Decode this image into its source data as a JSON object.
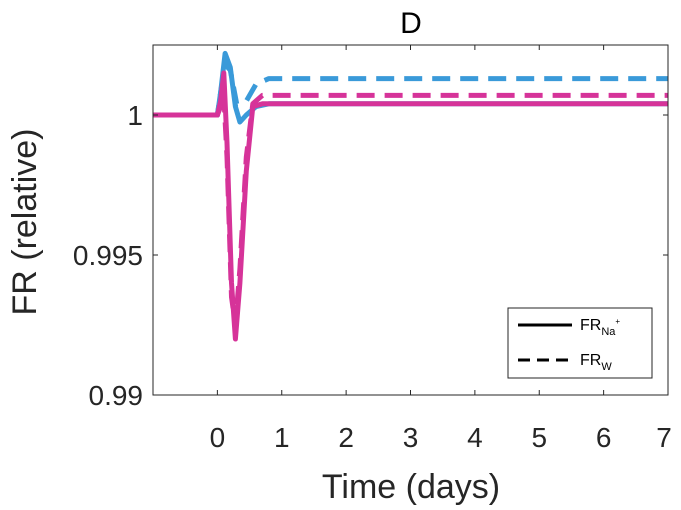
{
  "chart_data": {
    "type": "line",
    "title": "D",
    "xlabel": "Time (days)",
    "ylabel": "FR (relative)",
    "xlim": [
      -1,
      7
    ],
    "ylim": [
      0.99,
      1.0025
    ],
    "xticks": [
      0,
      1,
      2,
      3,
      4,
      5,
      6,
      7
    ],
    "yticks": [
      0.99,
      0.995,
      1
    ],
    "ytick_labels": [
      "0.99",
      "0.995",
      "1"
    ],
    "grid": false,
    "legend": {
      "placement": "bottom-right",
      "entries": [
        {
          "style": "solid",
          "base": "FR",
          "sub": "Na",
          "sup": "+"
        },
        {
          "style": "dashed",
          "base": "FR",
          "sub": "W",
          "sup": ""
        }
      ]
    },
    "colors": {
      "blue": "#3a9ad9",
      "magenta": "#d63399"
    },
    "series": [
      {
        "color": "#3a9ad9",
        "style": "dashed",
        "x": [
          -1,
          0,
          0.05,
          0.12,
          0.2,
          0.3,
          0.45,
          0.6,
          0.8,
          1,
          7
        ],
        "y": [
          1,
          1,
          1.0008,
          1.0018,
          1.0016,
          1.0004,
          1.0005,
          1.0011,
          1.0013,
          1.0013,
          1.0013
        ]
      },
      {
        "color": "#3a9ad9",
        "style": "solid",
        "x": [
          -1,
          0,
          0.05,
          0.12,
          0.2,
          0.28,
          0.35,
          0.45,
          0.6,
          0.8,
          7
        ],
        "y": [
          1,
          1,
          1.0008,
          1.0022,
          1.0017,
          1.0003,
          0.99975,
          1,
          1.0003,
          1.0004,
          1.0004
        ]
      },
      {
        "color": "#d63399",
        "style": "dashed",
        "x": [
          -1,
          0,
          0.05,
          0.1,
          0.15,
          0.22,
          0.28,
          0.35,
          0.45,
          0.55,
          0.7,
          1,
          7
        ],
        "y": [
          1,
          1,
          1.0003,
          1.0007,
          0.9985,
          0.9935,
          0.9925,
          0.9945,
          0.9985,
          1.0004,
          1.0007,
          1.0007,
          1.0007
        ]
      },
      {
        "color": "#d63399",
        "style": "solid",
        "x": [
          -1,
          0,
          0.05,
          0.1,
          0.15,
          0.22,
          0.28,
          0.35,
          0.45,
          0.55,
          0.7,
          1,
          7
        ],
        "y": [
          1,
          1,
          1.0005,
          1.0015,
          0.999,
          0.994,
          0.992,
          0.994,
          0.998,
          1.0003,
          1.0004,
          1.0004,
          1.0004
        ]
      }
    ]
  }
}
